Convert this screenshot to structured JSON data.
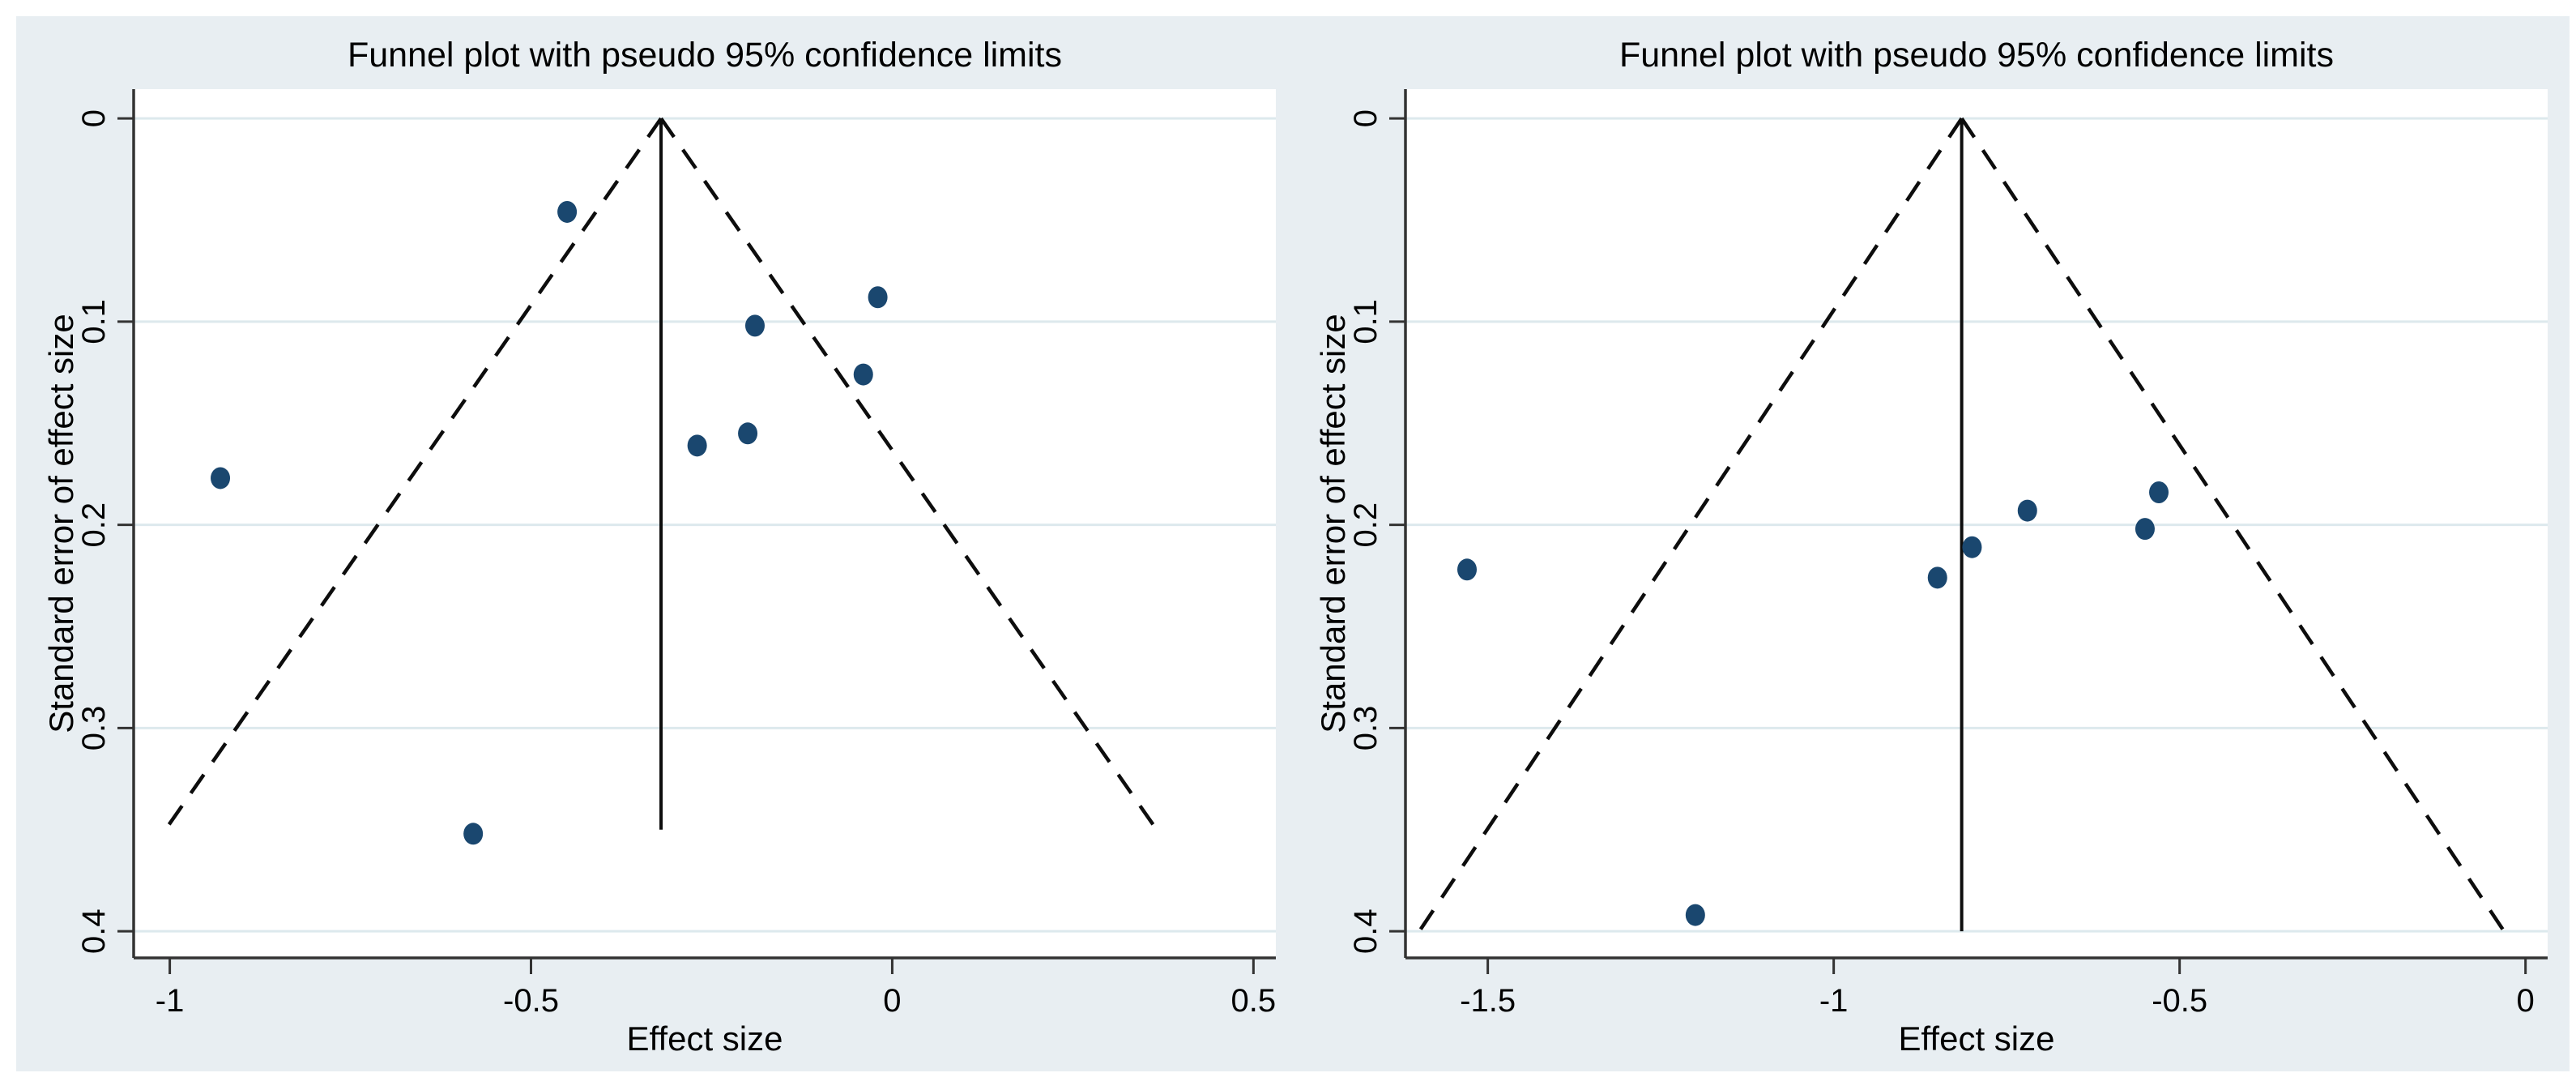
{
  "figure": {
    "background": "#ffffff",
    "panel_background": "#e8eef2",
    "plot_background": "#ffffff",
    "grid_color": "#dde9ed",
    "axis_color": "#333333",
    "text_color": "#000000",
    "marker_color": "#1a476f",
    "funnel_line_color": "#0d0d0d"
  },
  "chart_data": [
    {
      "type": "scatter",
      "title": "Funnel plot with pseudo 95% confidence limits",
      "xlabel": "Effect size",
      "ylabel": "Standard error of effect size",
      "legend": "none",
      "grid": "horizontal",
      "y_inverted": true,
      "x_axis_range": [
        -1.05,
        0.531
      ],
      "y_axis_range": [
        -0.0144,
        0.4131
      ],
      "xticks": [
        {
          "value": -1,
          "label": "-1"
        },
        {
          "value": -0.5,
          "label": "-0.5"
        },
        {
          "value": 0,
          "label": "0"
        },
        {
          "value": 0.5,
          "label": "0.5"
        }
      ],
      "yticks": [
        {
          "value": 0,
          "label": "0"
        },
        {
          "value": 0.1,
          "label": "0.1"
        },
        {
          "value": 0.2,
          "label": "0.2"
        },
        {
          "value": 0.3,
          "label": "0.3"
        },
        {
          "value": 0.4,
          "label": "0.4"
        }
      ],
      "pseudo_ci": {
        "center_effect": -0.32,
        "multiplier": 1.96,
        "max_se": 0.35,
        "style": "dashed"
      },
      "center_line": {
        "effect": -0.32,
        "se_from": 0,
        "se_to": 0.35
      },
      "points": [
        {
          "effect": -0.45,
          "se": 0.046
        },
        {
          "effect": -0.02,
          "se": 0.088
        },
        {
          "effect": -0.19,
          "se": 0.102
        },
        {
          "effect": -0.04,
          "se": 0.126
        },
        {
          "effect": -0.27,
          "se": 0.161
        },
        {
          "effect": -0.2,
          "se": 0.155
        },
        {
          "effect": -0.93,
          "se": 0.177
        },
        {
          "effect": -0.58,
          "se": 0.352
        }
      ]
    },
    {
      "type": "scatter",
      "title": "Funnel plot with pseudo 95% confidence limits",
      "xlabel": "Effect size",
      "ylabel": "Standard error of effect size",
      "legend": "none",
      "grid": "horizontal",
      "y_inverted": true,
      "x_axis_range": [
        -1.619,
        0.032
      ],
      "y_axis_range": [
        -0.0144,
        0.4131
      ],
      "xticks": [
        {
          "value": -1.5,
          "label": "-1.5"
        },
        {
          "value": -1,
          "label": "-1"
        },
        {
          "value": -0.5,
          "label": "-0.5"
        },
        {
          "value": 0,
          "label": "0"
        }
      ],
      "yticks": [
        {
          "value": 0,
          "label": "0"
        },
        {
          "value": 0.1,
          "label": "0.1"
        },
        {
          "value": 0.2,
          "label": "0.2"
        },
        {
          "value": 0.3,
          "label": "0.3"
        },
        {
          "value": 0.4,
          "label": "0.4"
        }
      ],
      "pseudo_ci": {
        "center_effect": -0.815,
        "multiplier": 1.96,
        "max_se": 0.4,
        "style": "dashed"
      },
      "center_line": {
        "effect": -0.815,
        "se_from": 0,
        "se_to": 0.4
      },
      "points": [
        {
          "effect": -1.53,
          "se": 0.222
        },
        {
          "effect": -0.85,
          "se": 0.226
        },
        {
          "effect": -0.8,
          "se": 0.211
        },
        {
          "effect": -0.72,
          "se": 0.193
        },
        {
          "effect": -0.53,
          "se": 0.184
        },
        {
          "effect": -0.55,
          "se": 0.202
        },
        {
          "effect": -1.2,
          "se": 0.392
        }
      ]
    }
  ]
}
